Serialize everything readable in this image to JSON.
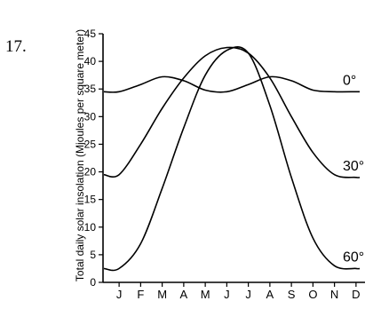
{
  "question_number": "17.",
  "chart_data": {
    "type": "line",
    "title": "",
    "xlabel": "",
    "ylabel": "Total daily solar insolation (Mjoules per square meter)",
    "categories": [
      "J",
      "F",
      "M",
      "A",
      "M",
      "J",
      "J",
      "A",
      "S",
      "O",
      "N",
      "D"
    ],
    "ylim": [
      0,
      45
    ],
    "yticks": [
      0,
      5,
      10,
      15,
      20,
      25,
      30,
      35,
      40,
      45
    ],
    "grid": false,
    "series": [
      {
        "name": "0°",
        "values": [
          34.5,
          35.8,
          37.2,
          36.5,
          34.8,
          34.5,
          35.8,
          37.2,
          36.5,
          34.8,
          34.5,
          34.5
        ]
      },
      {
        "name": "30°",
        "values": [
          19.5,
          25.0,
          31.5,
          37.0,
          41.0,
          42.5,
          41.5,
          37.0,
          30.0,
          23.5,
          19.5,
          19.0
        ]
      },
      {
        "name": "60°",
        "values": [
          2.5,
          7.0,
          17.0,
          28.0,
          37.5,
          42.0,
          41.5,
          32.0,
          19.0,
          8.0,
          3.0,
          2.5
        ]
      }
    ]
  }
}
